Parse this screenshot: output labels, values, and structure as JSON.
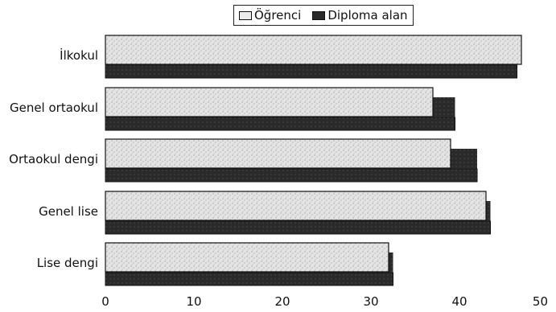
{
  "chart_data": {
    "type": "bar",
    "orientation": "horizontal",
    "title": "",
    "xlabel": "",
    "ylabel": "",
    "categories": [
      "İlkokul",
      "Genel ortaokul",
      "Ortaokul dengi",
      "Genel lise",
      "Lise dengi"
    ],
    "series": [
      {
        "name": "Öğrenci",
        "values": [
          47,
          37,
          39,
          43,
          32
        ],
        "color": "#d9d9d9"
      },
      {
        "name": "Diploma alan",
        "values": [
          46.5,
          39.5,
          42,
          43.5,
          32.5
        ],
        "color": "#2a2a2a"
      }
    ],
    "xlim": [
      0,
      50
    ],
    "xticks": [
      0,
      10,
      20,
      30,
      40,
      50
    ],
    "grid": false,
    "legend_position": "top"
  }
}
